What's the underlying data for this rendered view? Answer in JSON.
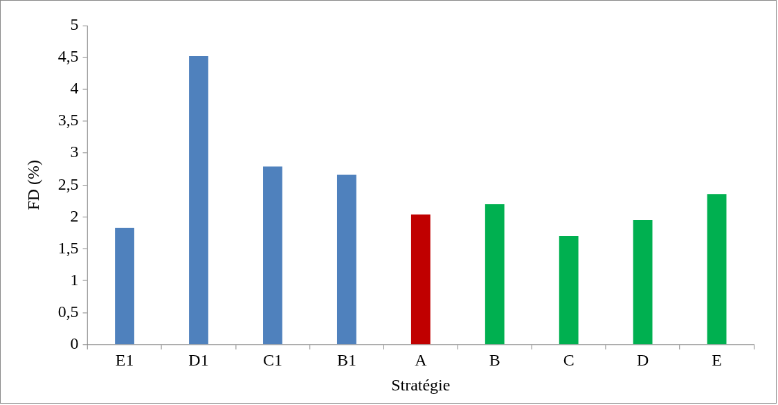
{
  "chart_data": {
    "type": "bar",
    "xlabel": "Stratégie",
    "ylabel": "FD (%)",
    "categories": [
      "E1",
      "D1",
      "C1",
      "B1",
      "A",
      "B",
      "C",
      "D",
      "E"
    ],
    "values": [
      1.83,
      4.52,
      2.79,
      2.66,
      2.04,
      2.2,
      1.7,
      1.95,
      2.36
    ],
    "colors": [
      "#4f81bd",
      "#4f81bd",
      "#4f81bd",
      "#4f81bd",
      "#c00000",
      "#00b050",
      "#00b050",
      "#00b050",
      "#00b050"
    ],
    "ylim": [
      0,
      5
    ],
    "yticks": [
      {
        "value": 0,
        "label": "0"
      },
      {
        "value": 0.5,
        "label": "0,5"
      },
      {
        "value": 1,
        "label": "1"
      },
      {
        "value": 1.5,
        "label": "1,5"
      },
      {
        "value": 2,
        "label": "2"
      },
      {
        "value": 2.5,
        "label": "2,5"
      },
      {
        "value": 3,
        "label": "3"
      },
      {
        "value": 3.5,
        "label": "3,5"
      },
      {
        "value": 4,
        "label": "4"
      },
      {
        "value": 4.5,
        "label": "4,5"
      },
      {
        "value": 5,
        "label": "5"
      }
    ],
    "grid": false,
    "legend": false
  }
}
